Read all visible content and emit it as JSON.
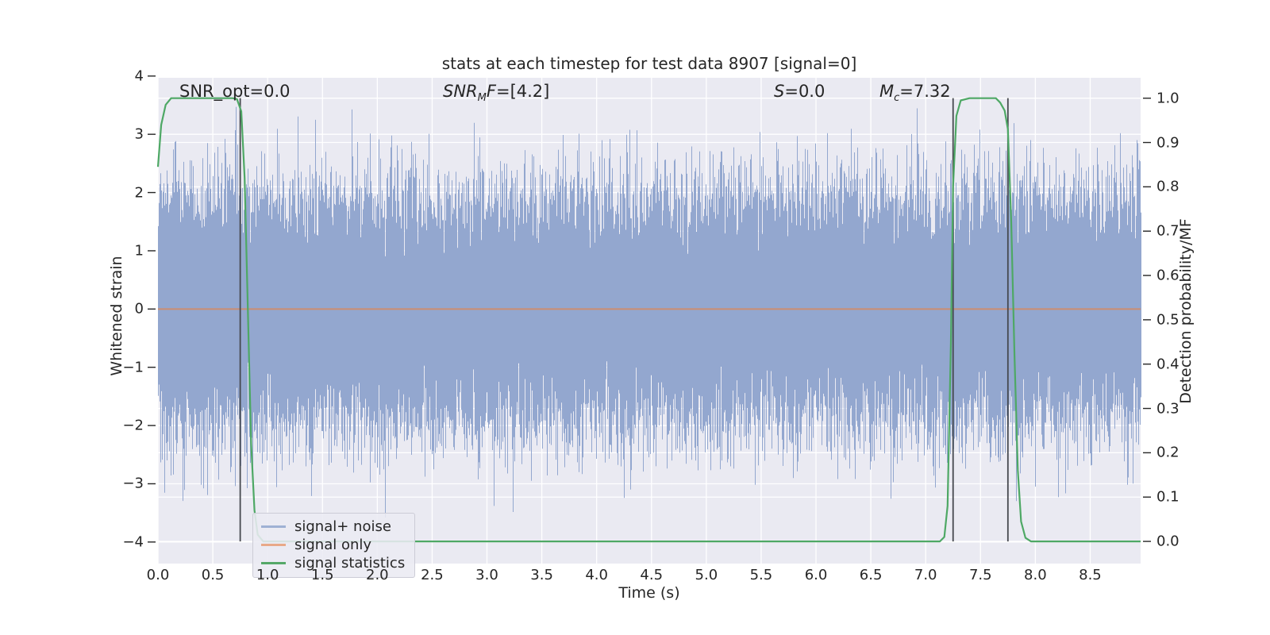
{
  "title": "stats at each timestep for test data 8907 [signal=0]",
  "annotations": {
    "snr_opt": {
      "text": "SNR_opt=0.0"
    },
    "snr_mf": {
      "pre": "SNR",
      "sub": "M",
      "post": "F",
      "rest": "=[4.2]"
    },
    "s": {
      "pre": "S",
      "sub": "",
      "post": "",
      "rest": "=0.0"
    },
    "mc": {
      "pre": "M",
      "sub": "c",
      "post": "",
      "rest": "=7.32"
    }
  },
  "legend": {
    "items": [
      {
        "label": "signal+ noise",
        "color": "#9fb1d4"
      },
      {
        "label": "signal only",
        "color": "#e8a988"
      },
      {
        "label": "signal statistics",
        "color": "#55a868"
      }
    ]
  },
  "chart_data": {
    "type": "line",
    "title": "stats at each timestep for test data 8907 [signal=0]",
    "xlabel": "Time (s)",
    "ylabel_left": "Whitened strain",
    "ylabel_right": "Detection probability/MF",
    "xlim": [
      0,
      8.96
    ],
    "ylim_left": [
      -4.37,
      3.97
    ],
    "ylim_right": [
      -0.05,
      1.046
    ],
    "x_ticks": [
      0.0,
      0.5,
      1.0,
      1.5,
      2.0,
      2.5,
      3.0,
      3.5,
      4.0,
      4.5,
      5.0,
      5.5,
      6.0,
      6.5,
      7.0,
      7.5,
      8.0,
      8.5
    ],
    "x_tick_labels": [
      "0.0",
      "0.5",
      "1.0",
      "1.5",
      "2.0",
      "2.5",
      "3.0",
      "3.5",
      "4.0",
      "4.5",
      "5.0",
      "5.5",
      "6.0",
      "6.5",
      "7.0",
      "7.5",
      "8.0",
      "8.5"
    ],
    "y_ticks_left": [
      -4,
      -3,
      -2,
      -1,
      0,
      1,
      2,
      3,
      4
    ],
    "y_tick_labels_left": [
      "−4",
      "−3",
      "−2",
      "−1",
      "0",
      "1",
      "2",
      "3",
      "4"
    ],
    "y_ticks_right": [
      0.0,
      0.1,
      0.2,
      0.3,
      0.4,
      0.5,
      0.6,
      0.7,
      0.8,
      0.9,
      1.0
    ],
    "y_tick_labels_right": [
      "0.0",
      "0.1",
      "0.2",
      "0.3",
      "0.4",
      "0.5",
      "0.6",
      "0.7",
      "0.8",
      "0.9",
      "1.0"
    ],
    "grid": true,
    "axes_background": "#eaeaf2",
    "grid_color": "#ffffff",
    "legend_position": "lower left",
    "stats": {
      "SNR_opt": "0.0",
      "SNR_MF": "[4.2]",
      "S": "0.0",
      "M_c": "7.32"
    },
    "series": [
      {
        "name": "signal+ noise",
        "type": "noise_band",
        "axis": "left",
        "color": "#93a7cf",
        "sigma": 1.0,
        "samples_per_pixel": 30,
        "seed": 424242,
        "x_range": [
          0,
          8.96
        ],
        "typical_envelope": 2.1,
        "max_spike": 3.8
      },
      {
        "name": "signal only",
        "type": "constant",
        "axis": "left",
        "color": "#dd8452",
        "opacity": 0.75,
        "value": 0
      },
      {
        "name": "signal statistics",
        "type": "line",
        "axis": "right",
        "color": "#4ea865",
        "points": [
          [
            0,
            0.845
          ],
          [
            0.03,
            0.94
          ],
          [
            0.07,
            0.985
          ],
          [
            0.12,
            1.0
          ],
          [
            0.3,
            1.0
          ],
          [
            0.5,
            1.0
          ],
          [
            0.68,
            1.0
          ],
          [
            0.72,
            0.998
          ],
          [
            0.76,
            0.97
          ],
          [
            0.79,
            0.82
          ],
          [
            0.82,
            0.52
          ],
          [
            0.85,
            0.22
          ],
          [
            0.88,
            0.07
          ],
          [
            0.91,
            0.015
          ],
          [
            0.96,
            0.0
          ],
          [
            2.0,
            0.0
          ],
          [
            4.0,
            0.0
          ],
          [
            6.0,
            0.0
          ],
          [
            7.13,
            0.0
          ],
          [
            7.17,
            0.01
          ],
          [
            7.2,
            0.08
          ],
          [
            7.23,
            0.45
          ],
          [
            7.25,
            0.8
          ],
          [
            7.28,
            0.96
          ],
          [
            7.32,
            0.995
          ],
          [
            7.4,
            1.0
          ],
          [
            7.55,
            1.0
          ],
          [
            7.64,
            1.0
          ],
          [
            7.68,
            0.99
          ],
          [
            7.72,
            0.972
          ],
          [
            7.75,
            0.93
          ],
          [
            7.78,
            0.72
          ],
          [
            7.81,
            0.42
          ],
          [
            7.84,
            0.16
          ],
          [
            7.87,
            0.045
          ],
          [
            7.91,
            0.008
          ],
          [
            7.96,
            0.0
          ],
          [
            8.5,
            0.0
          ],
          [
            8.96,
            0.0
          ]
        ]
      }
    ],
    "event_vlines": {
      "axis": "right",
      "color": "#46494f",
      "times": [
        0.75,
        7.25,
        7.75
      ],
      "y_range": [
        0,
        1.0
      ]
    }
  }
}
